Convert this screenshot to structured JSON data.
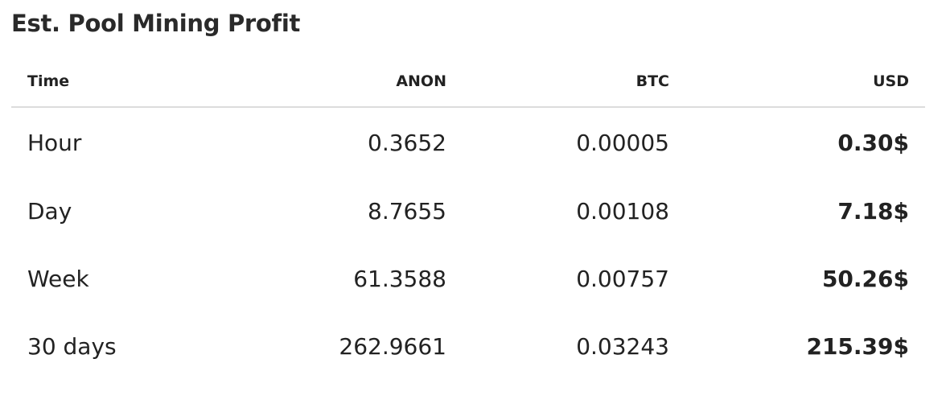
{
  "title": "Est. Pool Mining Profit",
  "table": {
    "headers": [
      "Time",
      "ANON",
      "BTC",
      "USD"
    ],
    "rows": [
      [
        "Hour",
        "0.3652",
        "0.00005",
        "0.30$"
      ],
      [
        "Day",
        "8.7655",
        "0.00108",
        "7.18$"
      ],
      [
        "Week",
        "61.3588",
        "0.00757",
        "50.26$"
      ],
      [
        "30 days",
        "262.9661",
        "0.03243",
        "215.39$"
      ]
    ]
  }
}
